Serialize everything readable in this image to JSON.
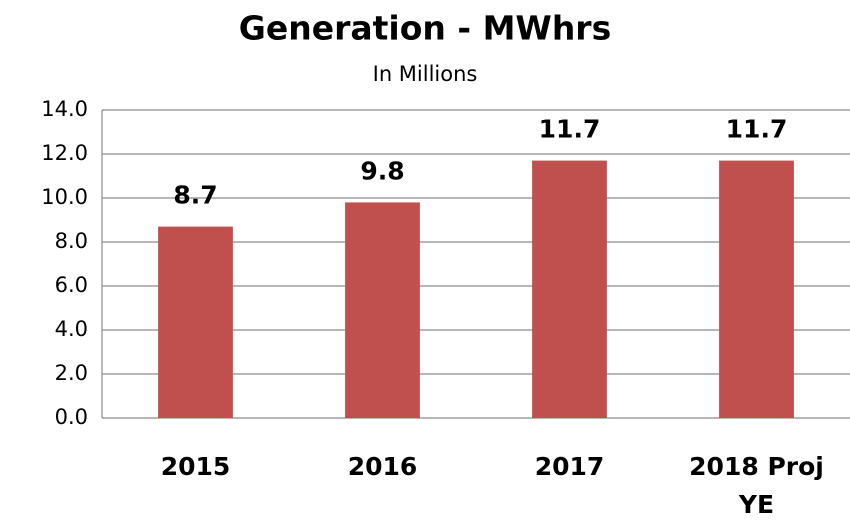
{
  "chart_data": {
    "type": "bar",
    "title": "Generation - MWhrs",
    "subtitle": "In Millions",
    "categories": [
      "2015",
      "2016",
      "2017",
      "2018 Proj YE"
    ],
    "values": [
      8.7,
      9.8,
      11.7,
      11.7
    ],
    "color": "#c0504d",
    "ylim": [
      0,
      14
    ],
    "yticks": [
      {
        "value": 0,
        "label": "0.0"
      },
      {
        "value": 2,
        "label": "2.0"
      },
      {
        "value": 4,
        "label": "4.0"
      },
      {
        "value": 6,
        "label": "6.0"
      },
      {
        "value": 8,
        "label": "8.0"
      },
      {
        "value": 10,
        "label": "10.0"
      },
      {
        "value": 12,
        "label": "12.0"
      },
      {
        "value": 14,
        "label": "14.0"
      }
    ],
    "grid": true
  }
}
